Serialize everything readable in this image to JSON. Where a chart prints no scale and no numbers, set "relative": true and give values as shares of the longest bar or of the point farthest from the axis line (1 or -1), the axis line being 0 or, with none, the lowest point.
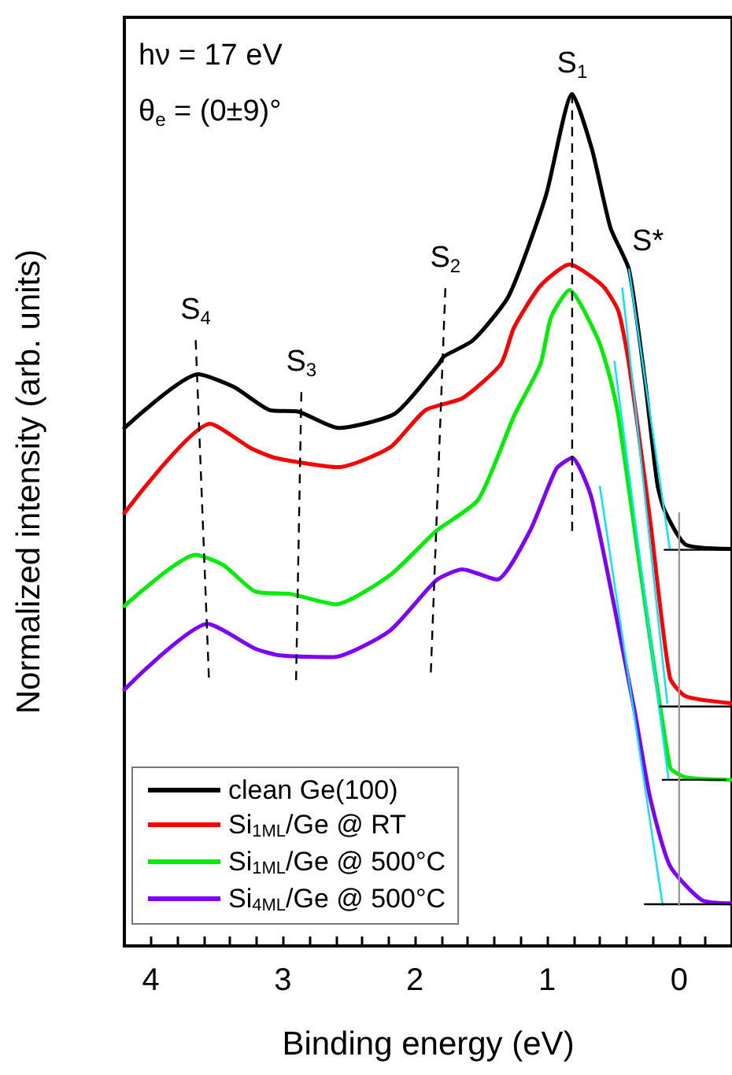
{
  "chart_data": {
    "type": "line",
    "relative": true,
    "xlabel": "Binding energy (eV)",
    "ylabel": "Normalized intensity (arb. units)",
    "xlim": [
      4.2,
      -0.4
    ],
    "xticks": [
      {
        "value": 4.2,
        "label": null
      },
      4,
      {
        "value": 3.8,
        "label": null
      },
      {
        "value": 3.6,
        "label": null
      },
      {
        "value": 3.4,
        "label": null
      },
      {
        "value": 3.2,
        "label": null
      },
      3,
      {
        "value": 2.8,
        "label": null
      },
      {
        "value": 2.6,
        "label": null
      },
      {
        "value": 2.4,
        "label": null
      },
      {
        "value": 2.2,
        "label": null
      },
      2,
      {
        "value": 1.8,
        "label": null
      },
      {
        "value": 1.6,
        "label": null
      },
      {
        "value": 1.4,
        "label": null
      },
      {
        "value": 1.2,
        "label": null
      },
      1,
      {
        "value": 0.8,
        "label": null
      },
      {
        "value": 0.6,
        "label": null
      },
      {
        "value": 0.4,
        "label": null
      },
      {
        "value": 0.2,
        "label": null
      },
      0,
      {
        "value": -0.2,
        "label": null
      }
    ],
    "grid": false,
    "legend": "bottom left",
    "marker": "none",
    "line_style": "solid",
    "annotations": [
      "hν = 17 eV",
      "θ$_{e}$ = (0±9)°",
      {
        "text": "S$_{1}$",
        "x": 0.81,
        "y": 1.0
      },
      {
        "text": "S*",
        "x": 0.38,
        "y": 0.794
      },
      {
        "text": "S$_{2}$",
        "x": 1.77,
        "y": 0.772
      },
      {
        "text": "S$_{3}$",
        "x": 2.86,
        "y": 0.65
      },
      {
        "text": "S$_{4}$",
        "x": 3.66,
        "y": 0.711
      }
    ],
    "series": [
      {
        "name": "clean Ge(100)",
        "color": "#000000",
        "x": [
          4.2,
          3.64,
          3.37,
          3.1,
          2.88,
          2.58,
          2.15,
          1.82,
          1.78,
          1.56,
          1.29,
          1.01,
          0.81,
          0.66,
          0.52,
          0.38,
          0.26,
          0.165,
          0.11,
          -0.05,
          -0.39
        ],
        "values": [
          0.608,
          0.671,
          0.656,
          0.629,
          0.627,
          0.608,
          0.625,
          0.683,
          0.692,
          0.711,
          0.763,
          0.88,
          1.0,
          0.935,
          0.843,
          0.794,
          0.665,
          0.542,
          0.511,
          0.471,
          0.466
        ]
      },
      {
        "name": "Si$_{1ML}$/Ge @ RT",
        "color": "#ff0000",
        "x": [
          4.2,
          3.55,
          3.25,
          3.06,
          2.58,
          2.19,
          1.92,
          1.64,
          1.35,
          1.25,
          1.05,
          0.83,
          0.58,
          0.46,
          0.38,
          0.22,
          0.07,
          -0.05,
          -0.39
        ],
        "values": [
          0.508,
          0.613,
          0.585,
          0.573,
          0.562,
          0.585,
          0.629,
          0.643,
          0.683,
          0.726,
          0.775,
          0.8,
          0.775,
          0.745,
          0.683,
          0.5,
          0.315,
          0.293,
          0.285
        ]
      },
      {
        "name": "Si$_{1ML}$/Ge @ 500°C",
        "color": "#00ee00",
        "x": [
          4.2,
          3.66,
          3.45,
          3.21,
          2.94,
          2.6,
          2.19,
          1.84,
          1.52,
          1.25,
          1.05,
          0.97,
          0.83,
          0.62,
          0.52,
          0.46,
          0.07,
          -0.05,
          -0.39
        ],
        "values": [
          0.399,
          0.459,
          0.447,
          0.416,
          0.413,
          0.401,
          0.435,
          0.487,
          0.524,
          0.622,
          0.683,
          0.738,
          0.77,
          0.714,
          0.665,
          0.622,
          0.21,
          0.198,
          0.195
        ]
      },
      {
        "name": "Si$_{4ML}$/Ge @ 500°C",
        "color": "#8000ff",
        "x": [
          4.2,
          3.57,
          3.21,
          3.02,
          2.62,
          2.19,
          1.84,
          1.64,
          1.38,
          1.13,
          0.93,
          0.81,
          0.66,
          0.34,
          0.22,
          0.07,
          -0.17,
          -0.39
        ],
        "values": [
          0.301,
          0.378,
          0.349,
          0.341,
          0.339,
          0.37,
          0.429,
          0.442,
          0.43,
          0.487,
          0.56,
          0.573,
          0.524,
          0.278,
          0.174,
          0.094,
          0.054,
          0.05
        ]
      },
      {
        "color": "#00e5ff",
        "x": [
          0.38,
          0.07
        ],
        "values": [
          0.794,
          0.465
        ]
      },
      {
        "color": "#00e5ff",
        "x": [
          0.43,
          0.09
        ],
        "values": [
          0.772,
          0.285
        ]
      },
      {
        "color": "#00e5ff",
        "x": [
          0.49,
          0.08
        ],
        "values": [
          0.686,
          0.195
        ]
      },
      {
        "color": "#00e5ff",
        "x": [
          0.6,
          0.125
        ],
        "values": [
          0.539,
          0.048
        ]
      },
      {
        "color": "#000000",
        "x": [
          0.11,
          -0.39
        ],
        "values": [
          0.465,
          0.465
        ]
      },
      {
        "color": "#000000",
        "x": [
          0.146,
          -0.39
        ],
        "values": [
          0.281,
          0.281
        ]
      },
      {
        "color": "#000000",
        "x": [
          0.125,
          -0.35
        ],
        "values": [
          0.195,
          0.195
        ]
      },
      {
        "color": "#000000",
        "x": [
          0.26,
          -0.39
        ],
        "values": [
          0.049,
          0.049
        ]
      },
      {
        "color": "#999999",
        "x": [
          0,
          0
        ],
        "values": [
          0.508,
          0.048
        ]
      },
      {
        "color": "#000000",
        "line_style": "dashed",
        "x": [
          0.81,
          0.81
        ],
        "values": [
          1.0,
          0.487
        ]
      },
      {
        "color": "#000000",
        "line_style": "dashed",
        "x": [
          1.77,
          1.88
        ],
        "values": [
          0.772,
          0.321
        ]
      },
      {
        "color": "#000000",
        "line_style": "dashed",
        "x": [
          2.86,
          2.9
        ],
        "values": [
          0.65,
          0.312
        ]
      },
      {
        "color": "#000000",
        "line_style": "dashed",
        "x": [
          3.66,
          3.56
        ],
        "values": [
          0.711,
          0.315
        ]
      }
    ]
  }
}
